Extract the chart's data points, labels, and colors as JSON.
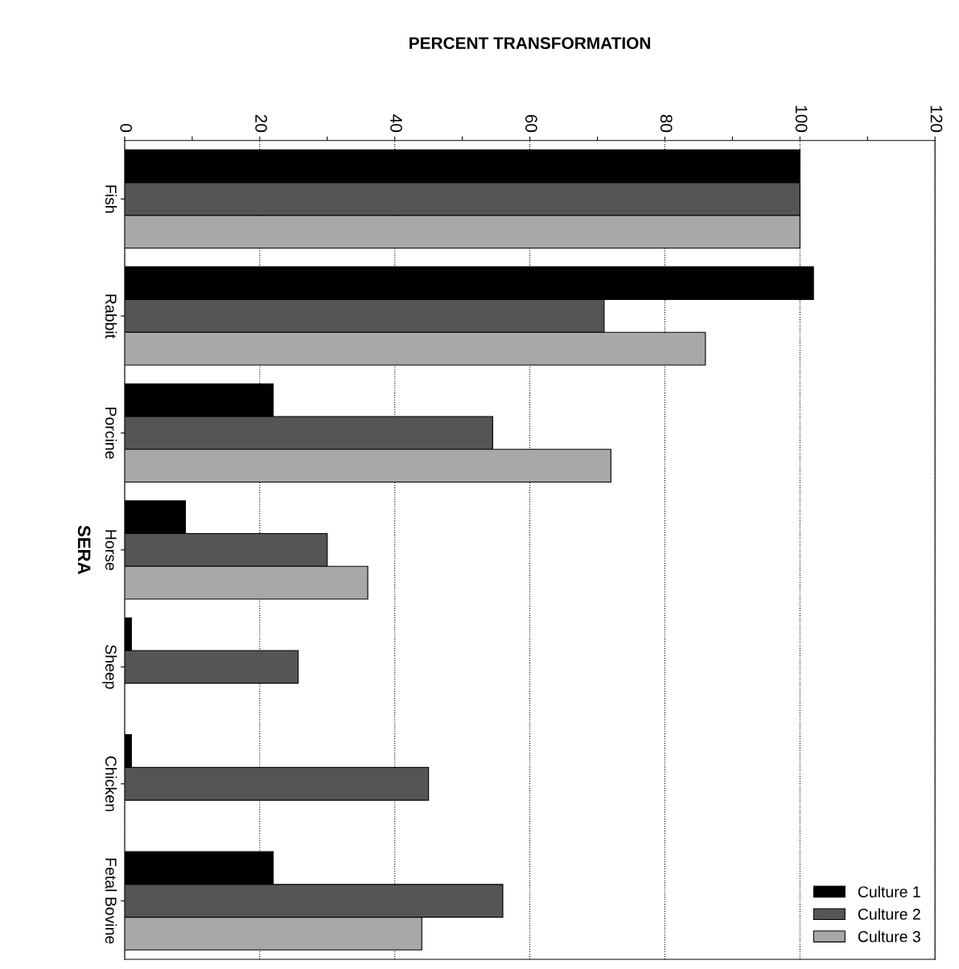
{
  "chart_data": {
    "type": "bar",
    "orientation": "horizontal",
    "xlabel": "PERCENT TRANSFORMATION",
    "ylabel": "SERA",
    "categories": [
      "Fish",
      "Rabbit",
      "Porcine",
      "Horse",
      "Sheep",
      "Chicken",
      "Fetal Bovine"
    ],
    "series": [
      {
        "name": "Culture 1",
        "color": "#000000",
        "values": [
          100,
          102,
          22,
          9,
          1,
          1,
          22
        ]
      },
      {
        "name": "Culture 2",
        "color": "#555555",
        "values": [
          100,
          71,
          54.5,
          30,
          25.7,
          45,
          56
        ]
      },
      {
        "name": "Culture 3",
        "color": "#a8a8a8",
        "values": [
          100,
          86,
          72,
          36,
          null,
          null,
          44
        ]
      }
    ],
    "xlim": [
      0,
      120
    ],
    "xticks": [
      0,
      {
        "value": 10,
        "label": null
      },
      20,
      {
        "value": 30,
        "label": null
      },
      40,
      {
        "value": 50,
        "label": null
      },
      60,
      {
        "value": 70,
        "label": null
      },
      80,
      {
        "value": 90,
        "label": null
      },
      100,
      {
        "value": 110,
        "label": null
      },
      120
    ],
    "grid": "x",
    "legend": "bottom right"
  }
}
